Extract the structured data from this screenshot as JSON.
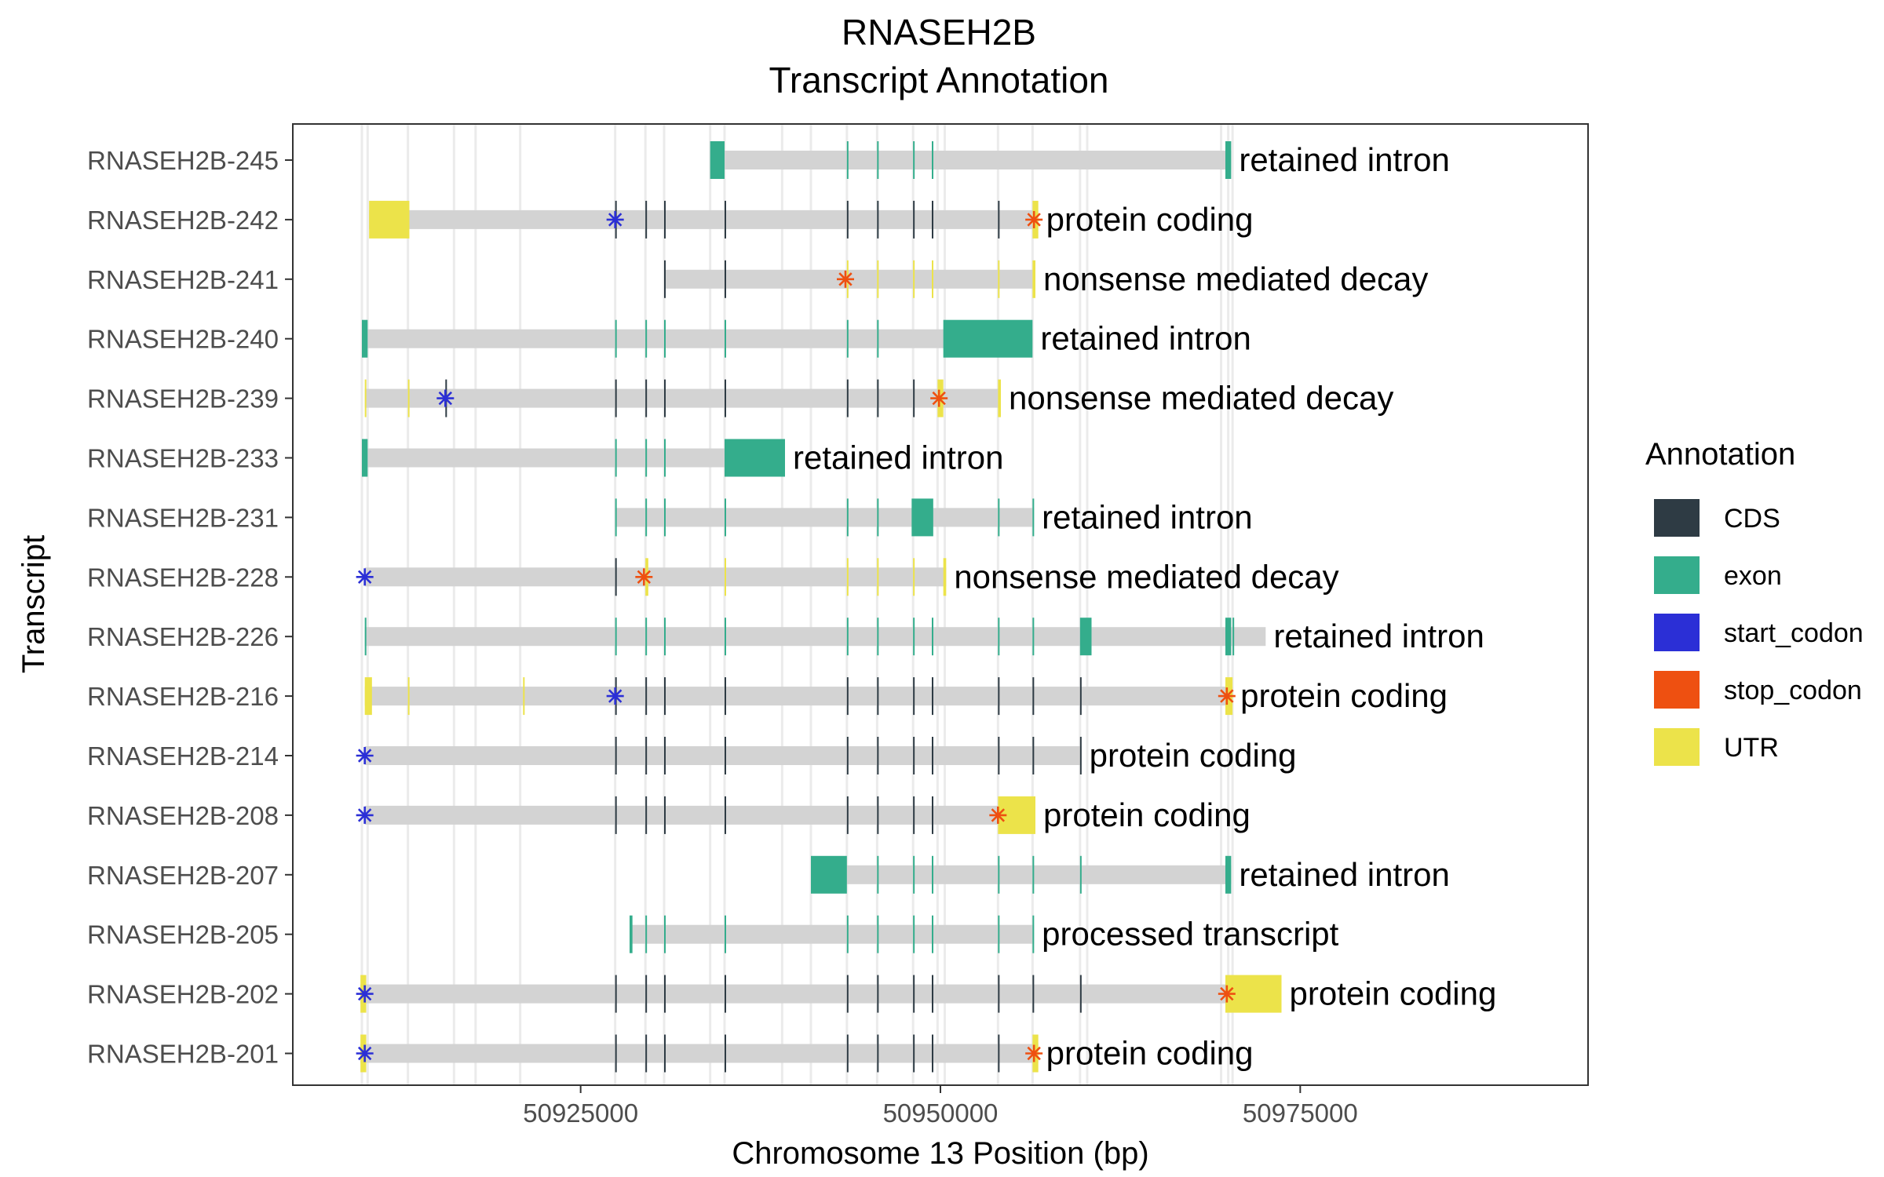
{
  "chart_data": {
    "type": "gene-track",
    "title": "RNASEH2B",
    "subtitle": "Transcript Annotation",
    "xlabel": "Chromosome 13 Position (bp)",
    "ylabel": "Transcript",
    "xlim": [
      50905000,
      50995000
    ],
    "x_ticks": [
      50925000,
      50950000,
      50975000
    ],
    "x_tick_labels": [
      "50925000",
      "50950000",
      "50975000"
    ],
    "grid": true,
    "legend": {
      "title": "Annotation",
      "position": "right",
      "items": [
        {
          "label": "CDS",
          "color": "#2e3b44"
        },
        {
          "label": "exon",
          "color": "#34ad8c"
        },
        {
          "label": "start_codon",
          "color": "#2b2fd6"
        },
        {
          "label": "stop_codon",
          "color": "#ee5011"
        },
        {
          "label": "UTR",
          "color": "#ece34a"
        }
      ]
    },
    "exon_positions": [
      50909800,
      50910200,
      50913000,
      50916200,
      50917700,
      50920800,
      50927400,
      50929500,
      50930800,
      50934000,
      50935000,
      50939000,
      50941000,
      50943500,
      50945600,
      50948100,
      50949800,
      50950300,
      50954000,
      50956400,
      50959700,
      50960200,
      50969500,
      50970000,
      50970300
    ],
    "transcripts": [
      {
        "name": "RNASEH2B-245",
        "type": "retained intron",
        "start": 50934000,
        "end": 50970200,
        "blocks": [
          [
            50934000,
            50935000,
            "exon"
          ],
          [
            50943500,
            50943600,
            "exon"
          ],
          [
            50945600,
            50945700,
            "exon"
          ],
          [
            50948100,
            50948200,
            "exon"
          ],
          [
            50949400,
            50949500,
            "exon"
          ],
          [
            50969800,
            50970200,
            "exon"
          ]
        ],
        "codons": []
      },
      {
        "name": "RNASEH2B-242",
        "type": "protein coding",
        "start": 50910300,
        "end": 50956800,
        "blocks": [
          [
            50910300,
            50913100,
            "UTR"
          ],
          [
            50927400,
            50927500,
            "CDS"
          ],
          [
            50929500,
            50929600,
            "CDS"
          ],
          [
            50930800,
            50930900,
            "CDS"
          ],
          [
            50935000,
            50935100,
            "CDS"
          ],
          [
            50943500,
            50943600,
            "CDS"
          ],
          [
            50945600,
            50945700,
            "CDS"
          ],
          [
            50948100,
            50948200,
            "CDS"
          ],
          [
            50949400,
            50949500,
            "CDS"
          ],
          [
            50954000,
            50954100,
            "CDS"
          ],
          [
            50956400,
            50956800,
            "UTR"
          ]
        ],
        "codons": [
          [
            50927400,
            "start_codon"
          ],
          [
            50956500,
            "stop_codon"
          ]
        ]
      },
      {
        "name": "RNASEH2B-241",
        "type": "nonsense mediated decay",
        "start": 50930800,
        "end": 50956600,
        "blocks": [
          [
            50930800,
            50930900,
            "CDS"
          ],
          [
            50935000,
            50935100,
            "CDS"
          ],
          [
            50943500,
            50943600,
            "UTR"
          ],
          [
            50945600,
            50945700,
            "UTR"
          ],
          [
            50948100,
            50948200,
            "UTR"
          ],
          [
            50949400,
            50949500,
            "UTR"
          ],
          [
            50954000,
            50954100,
            "UTR"
          ],
          [
            50956400,
            50956600,
            "UTR"
          ]
        ],
        "codons": [
          [
            50943400,
            "stop_codon"
          ]
        ]
      },
      {
        "name": "RNASEH2B-240",
        "type": "retained intron",
        "start": 50909800,
        "end": 50956400,
        "blocks": [
          [
            50909800,
            50910200,
            "exon"
          ],
          [
            50927400,
            50927500,
            "exon"
          ],
          [
            50929500,
            50929600,
            "exon"
          ],
          [
            50930800,
            50930900,
            "exon"
          ],
          [
            50935000,
            50935100,
            "exon"
          ],
          [
            50943500,
            50943600,
            "exon"
          ],
          [
            50945600,
            50945700,
            "exon"
          ],
          [
            50950200,
            50956400,
            "exon"
          ]
        ],
        "codons": []
      },
      {
        "name": "RNASEH2B-239",
        "type": "nonsense mediated decay",
        "start": 50910000,
        "end": 50954200,
        "blocks": [
          [
            50910000,
            50910100,
            "UTR"
          ],
          [
            50913000,
            50913100,
            "UTR"
          ],
          [
            50915600,
            50915700,
            "CDS"
          ],
          [
            50927400,
            50927500,
            "CDS"
          ],
          [
            50929500,
            50929600,
            "CDS"
          ],
          [
            50930800,
            50930900,
            "CDS"
          ],
          [
            50935000,
            50935100,
            "CDS"
          ],
          [
            50943500,
            50943600,
            "CDS"
          ],
          [
            50945600,
            50945700,
            "CDS"
          ],
          [
            50948100,
            50948200,
            "CDS"
          ],
          [
            50949800,
            50950200,
            "UTR"
          ],
          [
            50954000,
            50954200,
            "UTR"
          ]
        ],
        "codons": [
          [
            50915600,
            "start_codon"
          ],
          [
            50949900,
            "stop_codon"
          ]
        ]
      },
      {
        "name": "RNASEH2B-233",
        "type": "retained intron",
        "start": 50909800,
        "end": 50939200,
        "blocks": [
          [
            50909800,
            50910200,
            "exon"
          ],
          [
            50927400,
            50927500,
            "exon"
          ],
          [
            50929500,
            50929600,
            "exon"
          ],
          [
            50930800,
            50930900,
            "exon"
          ],
          [
            50935000,
            50939200,
            "exon"
          ]
        ],
        "codons": []
      },
      {
        "name": "RNASEH2B-231",
        "type": "retained intron",
        "start": 50927400,
        "end": 50956500,
        "blocks": [
          [
            50927400,
            50927500,
            "exon"
          ],
          [
            50929500,
            50929600,
            "exon"
          ],
          [
            50930800,
            50930900,
            "exon"
          ],
          [
            50935000,
            50935100,
            "exon"
          ],
          [
            50943500,
            50943600,
            "exon"
          ],
          [
            50945600,
            50945700,
            "exon"
          ],
          [
            50948000,
            50949500,
            "exon"
          ],
          [
            50954000,
            50954100,
            "exon"
          ],
          [
            50956400,
            50956500,
            "exon"
          ]
        ],
        "codons": []
      },
      {
        "name": "RNASEH2B-228",
        "type": "nonsense mediated decay",
        "start": 50910000,
        "end": 50950400,
        "blocks": [
          [
            50927400,
            50927500,
            "CDS"
          ],
          [
            50929500,
            50929700,
            "UTR"
          ],
          [
            50935000,
            50935100,
            "UTR"
          ],
          [
            50943500,
            50943600,
            "UTR"
          ],
          [
            50945600,
            50945700,
            "UTR"
          ],
          [
            50948100,
            50948200,
            "UTR"
          ],
          [
            50950200,
            50950400,
            "UTR"
          ]
        ],
        "codons": [
          [
            50910000,
            "start_codon"
          ],
          [
            50929400,
            "stop_codon"
          ]
        ]
      },
      {
        "name": "RNASEH2B-226",
        "type": "retained intron",
        "start": 50910000,
        "end": 50972600,
        "blocks": [
          [
            50910000,
            50910100,
            "exon"
          ],
          [
            50927400,
            50927500,
            "exon"
          ],
          [
            50929500,
            50929600,
            "exon"
          ],
          [
            50930800,
            50930900,
            "exon"
          ],
          [
            50935000,
            50935100,
            "exon"
          ],
          [
            50943500,
            50943600,
            "exon"
          ],
          [
            50945600,
            50945700,
            "exon"
          ],
          [
            50948100,
            50948200,
            "exon"
          ],
          [
            50949400,
            50949500,
            "exon"
          ],
          [
            50954000,
            50954100,
            "exon"
          ],
          [
            50956400,
            50956500,
            "exon"
          ],
          [
            50959700,
            50960500,
            "exon"
          ],
          [
            50969800,
            50970200,
            "exon"
          ],
          [
            50970300,
            50970400,
            "exon"
          ]
        ],
        "codons": []
      },
      {
        "name": "RNASEH2B-216",
        "type": "protein coding",
        "start": 50910000,
        "end": 50970300,
        "blocks": [
          [
            50910000,
            50910500,
            "UTR"
          ],
          [
            50913000,
            50913100,
            "UTR"
          ],
          [
            50921000,
            50921100,
            "UTR"
          ],
          [
            50927400,
            50927500,
            "CDS"
          ],
          [
            50929500,
            50929600,
            "CDS"
          ],
          [
            50930800,
            50930900,
            "CDS"
          ],
          [
            50935000,
            50935100,
            "CDS"
          ],
          [
            50943500,
            50943600,
            "CDS"
          ],
          [
            50945600,
            50945700,
            "CDS"
          ],
          [
            50948100,
            50948200,
            "CDS"
          ],
          [
            50949400,
            50949500,
            "CDS"
          ],
          [
            50954000,
            50954100,
            "CDS"
          ],
          [
            50956400,
            50956500,
            "CDS"
          ],
          [
            50959700,
            50959800,
            "CDS"
          ],
          [
            50969800,
            50970300,
            "UTR"
          ]
        ],
        "codons": [
          [
            50927400,
            "start_codon"
          ],
          [
            50969900,
            "stop_codon"
          ]
        ]
      },
      {
        "name": "RNASEH2B-214",
        "type": "protein coding",
        "start": 50910000,
        "end": 50959800,
        "blocks": [
          [
            50927400,
            50927500,
            "CDS"
          ],
          [
            50929500,
            50929600,
            "CDS"
          ],
          [
            50930800,
            50930900,
            "CDS"
          ],
          [
            50935000,
            50935100,
            "CDS"
          ],
          [
            50943500,
            50943600,
            "CDS"
          ],
          [
            50945600,
            50945700,
            "CDS"
          ],
          [
            50948100,
            50948200,
            "CDS"
          ],
          [
            50949400,
            50949500,
            "CDS"
          ],
          [
            50954000,
            50954100,
            "CDS"
          ],
          [
            50956400,
            50956500,
            "CDS"
          ],
          [
            50959700,
            50959800,
            "CDS"
          ]
        ],
        "codons": [
          [
            50910000,
            "start_codon"
          ]
        ]
      },
      {
        "name": "RNASEH2B-208",
        "type": "protein coding",
        "start": 50910000,
        "end": 50956600,
        "blocks": [
          [
            50927400,
            50927500,
            "CDS"
          ],
          [
            50929500,
            50929600,
            "CDS"
          ],
          [
            50930800,
            50930900,
            "CDS"
          ],
          [
            50935000,
            50935100,
            "CDS"
          ],
          [
            50943500,
            50943600,
            "CDS"
          ],
          [
            50945600,
            50945700,
            "CDS"
          ],
          [
            50948100,
            50948200,
            "CDS"
          ],
          [
            50949400,
            50949500,
            "CDS"
          ],
          [
            50954000,
            50956600,
            "UTR"
          ]
        ],
        "codons": [
          [
            50910000,
            "start_codon"
          ],
          [
            50954000,
            "stop_codon"
          ]
        ]
      },
      {
        "name": "RNASEH2B-207",
        "type": "retained intron",
        "start": 50941000,
        "end": 50970200,
        "blocks": [
          [
            50941000,
            50943500,
            "exon"
          ],
          [
            50945600,
            50945700,
            "exon"
          ],
          [
            50948100,
            50948200,
            "exon"
          ],
          [
            50949400,
            50949500,
            "exon"
          ],
          [
            50954000,
            50954100,
            "exon"
          ],
          [
            50956400,
            50956500,
            "exon"
          ],
          [
            50959700,
            50959800,
            "exon"
          ],
          [
            50969800,
            50970200,
            "exon"
          ]
        ],
        "codons": []
      },
      {
        "name": "RNASEH2B-205",
        "type": "processed transcript",
        "start": 50928400,
        "end": 50956500,
        "blocks": [
          [
            50928400,
            50928600,
            "exon"
          ],
          [
            50929500,
            50929600,
            "exon"
          ],
          [
            50930800,
            50930900,
            "exon"
          ],
          [
            50935000,
            50935100,
            "exon"
          ],
          [
            50943500,
            50943600,
            "exon"
          ],
          [
            50945600,
            50945700,
            "exon"
          ],
          [
            50948100,
            50948200,
            "exon"
          ],
          [
            50949400,
            50949500,
            "exon"
          ],
          [
            50954000,
            50954100,
            "exon"
          ],
          [
            50956400,
            50956500,
            "exon"
          ]
        ],
        "codons": []
      },
      {
        "name": "RNASEH2B-202",
        "type": "protein coding",
        "start": 50909700,
        "end": 50973700,
        "blocks": [
          [
            50909700,
            50910100,
            "UTR"
          ],
          [
            50927400,
            50927500,
            "CDS"
          ],
          [
            50929500,
            50929600,
            "CDS"
          ],
          [
            50930800,
            50930900,
            "CDS"
          ],
          [
            50935000,
            50935100,
            "CDS"
          ],
          [
            50943500,
            50943600,
            "CDS"
          ],
          [
            50945600,
            50945700,
            "CDS"
          ],
          [
            50948100,
            50948200,
            "CDS"
          ],
          [
            50949400,
            50949500,
            "CDS"
          ],
          [
            50954000,
            50954100,
            "CDS"
          ],
          [
            50956400,
            50956500,
            "CDS"
          ],
          [
            50959700,
            50959800,
            "CDS"
          ],
          [
            50969800,
            50973700,
            "UTR"
          ]
        ],
        "codons": [
          [
            50910000,
            "start_codon"
          ],
          [
            50969900,
            "stop_codon"
          ]
        ]
      },
      {
        "name": "RNASEH2B-201",
        "type": "protein coding",
        "start": 50909700,
        "end": 50956800,
        "blocks": [
          [
            50909700,
            50910100,
            "UTR"
          ],
          [
            50927400,
            50927500,
            "CDS"
          ],
          [
            50929500,
            50929600,
            "CDS"
          ],
          [
            50930800,
            50930900,
            "CDS"
          ],
          [
            50935000,
            50935100,
            "CDS"
          ],
          [
            50943500,
            50943600,
            "CDS"
          ],
          [
            50945600,
            50945700,
            "CDS"
          ],
          [
            50948100,
            50948200,
            "CDS"
          ],
          [
            50949400,
            50949500,
            "CDS"
          ],
          [
            50954000,
            50954100,
            "CDS"
          ],
          [
            50956400,
            50956800,
            "UTR"
          ]
        ],
        "codons": [
          [
            50910000,
            "start_codon"
          ],
          [
            50956500,
            "stop_codon"
          ]
        ]
      }
    ]
  }
}
